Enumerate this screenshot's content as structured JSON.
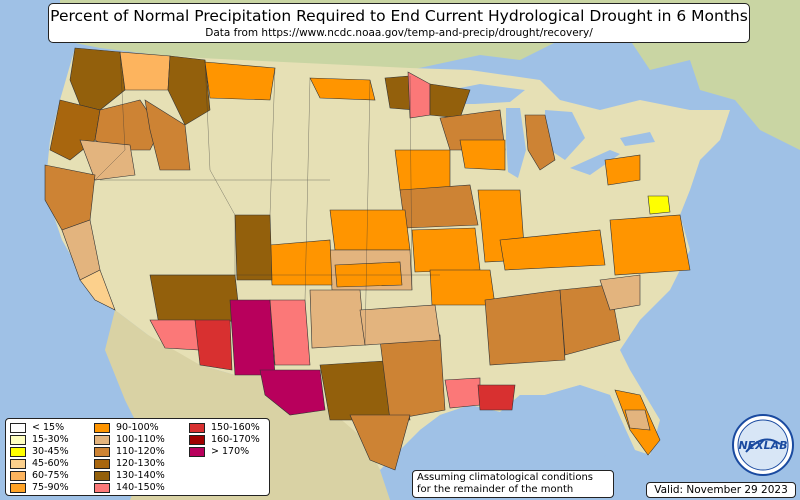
{
  "title": "Percent of Normal Precipitation Required to End Current Hydrological Drought in 6 Months",
  "subtitle": "Data from https://www.ncdc.noaa.gov/temp-and-precip/drought/recovery/",
  "legend": {
    "items": [
      {
        "label": "< 15%",
        "color": "#ffffff"
      },
      {
        "label": "15-30%",
        "color": "#ffffbf"
      },
      {
        "label": "30-45%",
        "color": "#ffff00"
      },
      {
        "label": "45-60%",
        "color": "#fcd08c"
      },
      {
        "label": "60-75%",
        "color": "#fdb45e"
      },
      {
        "label": "75-90%",
        "color": "#ffa326"
      },
      {
        "label": "90-100%",
        "color": "#ff9500"
      },
      {
        "label": "100-110%",
        "color": "#e3b47e"
      },
      {
        "label": "110-120%",
        "color": "#cd8334"
      },
      {
        "label": "120-130%",
        "color": "#a8660e"
      },
      {
        "label": "130-140%",
        "color": "#93600c"
      },
      {
        "label": "140-150%",
        "color": "#fb7878"
      },
      {
        "label": "150-160%",
        "color": "#d83030"
      },
      {
        "label": "160-170%",
        "color": "#a00000"
      },
      {
        "label": "> 170%",
        "color": "#b8005c"
      }
    ]
  },
  "note_line1": "Assuming climatological conditions",
  "note_line2": "for the remainder of the month",
  "valid": "Valid: November 29 2023",
  "logo_text": "NEXLAB",
  "colors": {
    "ocean": "#9fc1e6",
    "land_plain": "#e8e2b8",
    "land_green": "#b9cf92",
    "mexico": "#d9d2a4"
  }
}
